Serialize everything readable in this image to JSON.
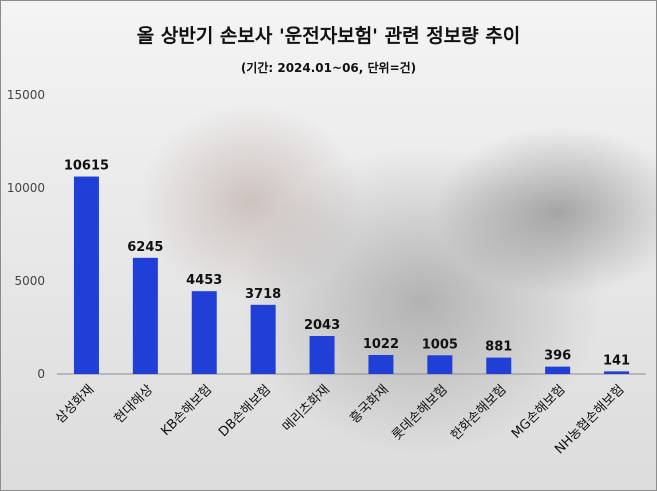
{
  "header": {
    "title": "올 상반기 손보사 '운전자보험' 관련 정보량 추이",
    "subtitle": "(기간: 2024.01~06, 단위=건)"
  },
  "chart_data": {
    "type": "bar",
    "title": "올 상반기 손보사 '운전자보험' 관련 정보량 추이",
    "subtitle": "(기간: 2024.01~06, 단위=건)",
    "categories": [
      "삼성화재",
      "현대해상",
      "KB손해보험",
      "DB손해보험",
      "메리츠화재",
      "흥국화재",
      "롯데손해보험",
      "한화손해보험",
      "MG손해보험",
      "NH농협손해보험"
    ],
    "values": [
      10615,
      6245,
      4453,
      3718,
      2043,
      1022,
      1005,
      881,
      396,
      141
    ],
    "ylim": [
      0,
      15000
    ],
    "yticks": [
      0,
      5000,
      10000,
      15000
    ],
    "grid": false,
    "legend": "none",
    "bar_color": "#1f3fd6"
  }
}
